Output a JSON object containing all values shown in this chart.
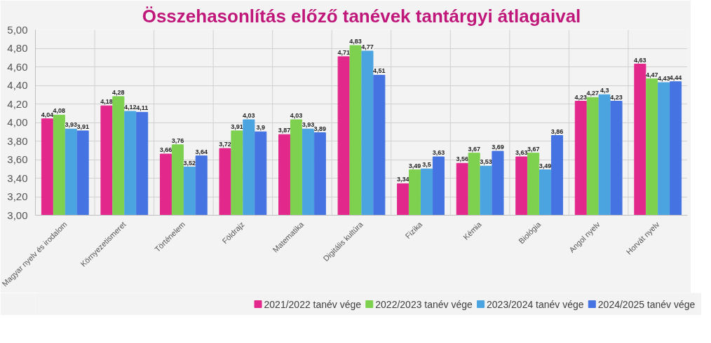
{
  "chart_data": {
    "type": "bar",
    "title": "Összehasonlítás előző tanévek tantárgyi átlagaival",
    "categories": [
      "Magyar nyelv és irodalom",
      "Környezetismeret",
      "Történelem",
      "Földrajz",
      "Matematika",
      "Digitális kultúra",
      "Fizika",
      "Kémia",
      "Biológia",
      "Angol nyelv",
      "Horvát nyelv"
    ],
    "series": [
      {
        "name": "2021/2022 tanév vége",
        "color": "#e3288c",
        "values": [
          4.04,
          4.18,
          3.66,
          3.72,
          3.87,
          4.71,
          3.34,
          3.56,
          3.63,
          4.23,
          4.63
        ],
        "value_labels": [
          "4,04",
          "4,18",
          "3,66",
          "3,72",
          "3,87",
          "4,71",
          "3,34",
          "3,56",
          "3,63",
          "4,23",
          "4,63"
        ]
      },
      {
        "name": "2022/2023 tanév vége",
        "color": "#7ed14f",
        "values": [
          4.08,
          4.28,
          3.76,
          3.91,
          4.03,
          4.83,
          3.49,
          3.67,
          3.67,
          4.27,
          4.47
        ],
        "value_labels": [
          "4,08",
          "4,28",
          "3,76",
          "3,91",
          "4,03",
          "4,83",
          "3,49",
          "3,67",
          "3,67",
          "4,27",
          "4,47"
        ]
      },
      {
        "name": "2023/2024 tanév vége",
        "color": "#4ba4e0",
        "values": [
          3.93,
          4.12,
          3.52,
          4.03,
          3.93,
          4.77,
          3.5,
          3.53,
          3.49,
          4.3,
          4.43
        ],
        "value_labels": [
          "3,93",
          "4,12",
          "3,52",
          "4,03",
          "3,93",
          "4,77",
          "3,5",
          "3,53",
          "3,49",
          "4,3",
          "4,43"
        ]
      },
      {
        "name": "2024/2025 tanév vége",
        "color": "#4574e2",
        "values": [
          3.91,
          4.11,
          3.64,
          3.9,
          3.89,
          4.51,
          3.63,
          3.69,
          3.86,
          4.23,
          4.44
        ],
        "value_labels": [
          "3,91",
          "4,11",
          "3,64",
          "3,9",
          "3,89",
          "4,51",
          "3,63",
          "3,69",
          "3,86",
          "4,23",
          "4,44"
        ]
      }
    ],
    "ylim": [
      3.0,
      5.0
    ],
    "yticks": [
      {
        "value": 3.0,
        "label": "3,00"
      },
      {
        "value": 3.2,
        "label": "3,20"
      },
      {
        "value": 3.4,
        "label": "3,40"
      },
      {
        "value": 3.6,
        "label": "3,60"
      },
      {
        "value": 3.8,
        "label": "3,80"
      },
      {
        "value": 4.0,
        "label": "4,00"
      },
      {
        "value": 4.2,
        "label": "4,20"
      },
      {
        "value": 4.4,
        "label": "4,40"
      },
      {
        "value": 4.6,
        "label": "4,60"
      },
      {
        "value": 4.8,
        "label": "4,80"
      },
      {
        "value": 5.0,
        "label": "5,00"
      }
    ],
    "grid": true,
    "legend": "bottom right"
  }
}
